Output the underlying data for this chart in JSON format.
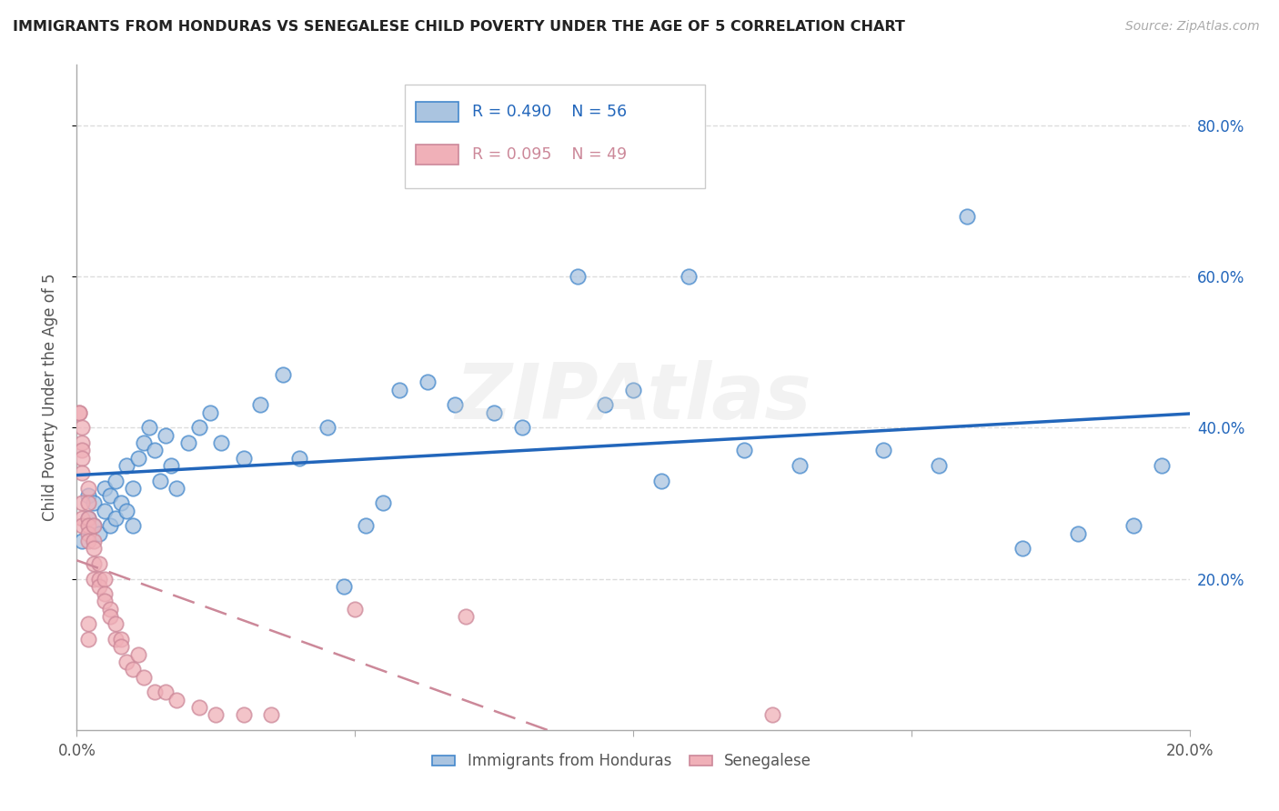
{
  "title": "IMMIGRANTS FROM HONDURAS VS SENEGALESE CHILD POVERTY UNDER THE AGE OF 5 CORRELATION CHART",
  "source": "Source: ZipAtlas.com",
  "ylabel": "Child Poverty Under the Age of 5",
  "legend_blue_label": "Immigrants from Honduras",
  "legend_pink_label": "Senegalese",
  "blue_r": "R = 0.490",
  "blue_n": "N = 56",
  "pink_r": "R = 0.095",
  "pink_n": "N = 49",
  "blue_face": "#aac4e0",
  "blue_edge": "#4488cc",
  "blue_line": "#2266bb",
  "pink_face": "#f0b0b8",
  "pink_edge": "#cc8899",
  "pink_line": "#cc8899",
  "xlim": [
    0.0,
    0.2
  ],
  "ylim": [
    0.0,
    0.88
  ],
  "right_yticks": [
    0.2,
    0.4,
    0.6,
    0.8
  ],
  "xtick_vals": [
    0.0,
    0.05,
    0.1,
    0.15,
    0.2
  ],
  "blue_x": [
    0.001,
    0.002,
    0.002,
    0.003,
    0.003,
    0.004,
    0.005,
    0.005,
    0.006,
    0.006,
    0.007,
    0.007,
    0.008,
    0.009,
    0.009,
    0.01,
    0.01,
    0.011,
    0.012,
    0.013,
    0.014,
    0.015,
    0.016,
    0.017,
    0.018,
    0.02,
    0.022,
    0.024,
    0.026,
    0.03,
    0.033,
    0.037,
    0.04,
    0.045,
    0.048,
    0.052,
    0.055,
    0.058,
    0.063,
    0.068,
    0.075,
    0.08,
    0.09,
    0.095,
    0.1,
    0.105,
    0.11,
    0.12,
    0.13,
    0.145,
    0.155,
    0.16,
    0.17,
    0.18,
    0.19,
    0.195
  ],
  "blue_y": [
    0.25,
    0.28,
    0.31,
    0.27,
    0.3,
    0.26,
    0.29,
    0.32,
    0.27,
    0.31,
    0.33,
    0.28,
    0.3,
    0.35,
    0.29,
    0.32,
    0.27,
    0.36,
    0.38,
    0.4,
    0.37,
    0.33,
    0.39,
    0.35,
    0.32,
    0.38,
    0.4,
    0.42,
    0.38,
    0.36,
    0.43,
    0.47,
    0.36,
    0.4,
    0.19,
    0.27,
    0.3,
    0.45,
    0.46,
    0.43,
    0.42,
    0.4,
    0.6,
    0.43,
    0.45,
    0.33,
    0.6,
    0.37,
    0.35,
    0.37,
    0.35,
    0.68,
    0.24,
    0.26,
    0.27,
    0.35
  ],
  "pink_x": [
    0.0005,
    0.0005,
    0.001,
    0.001,
    0.001,
    0.001,
    0.001,
    0.001,
    0.001,
    0.001,
    0.002,
    0.002,
    0.002,
    0.002,
    0.002,
    0.002,
    0.002,
    0.002,
    0.003,
    0.003,
    0.003,
    0.003,
    0.003,
    0.004,
    0.004,
    0.004,
    0.005,
    0.005,
    0.005,
    0.006,
    0.006,
    0.007,
    0.007,
    0.008,
    0.008,
    0.009,
    0.01,
    0.011,
    0.012,
    0.014,
    0.016,
    0.018,
    0.022,
    0.025,
    0.03,
    0.035,
    0.05,
    0.07,
    0.125
  ],
  "pink_y": [
    0.42,
    0.42,
    0.4,
    0.38,
    0.37,
    0.36,
    0.34,
    0.3,
    0.28,
    0.27,
    0.32,
    0.3,
    0.28,
    0.27,
    0.26,
    0.25,
    0.14,
    0.12,
    0.27,
    0.25,
    0.24,
    0.22,
    0.2,
    0.22,
    0.2,
    0.19,
    0.2,
    0.18,
    0.17,
    0.16,
    0.15,
    0.14,
    0.12,
    0.12,
    0.11,
    0.09,
    0.08,
    0.1,
    0.07,
    0.05,
    0.05,
    0.04,
    0.03,
    0.02,
    0.02,
    0.02,
    0.16,
    0.15,
    0.02
  ],
  "watermark": "ZIPAtlas",
  "bg_color": "#ffffff",
  "grid_color": "#dddddd"
}
